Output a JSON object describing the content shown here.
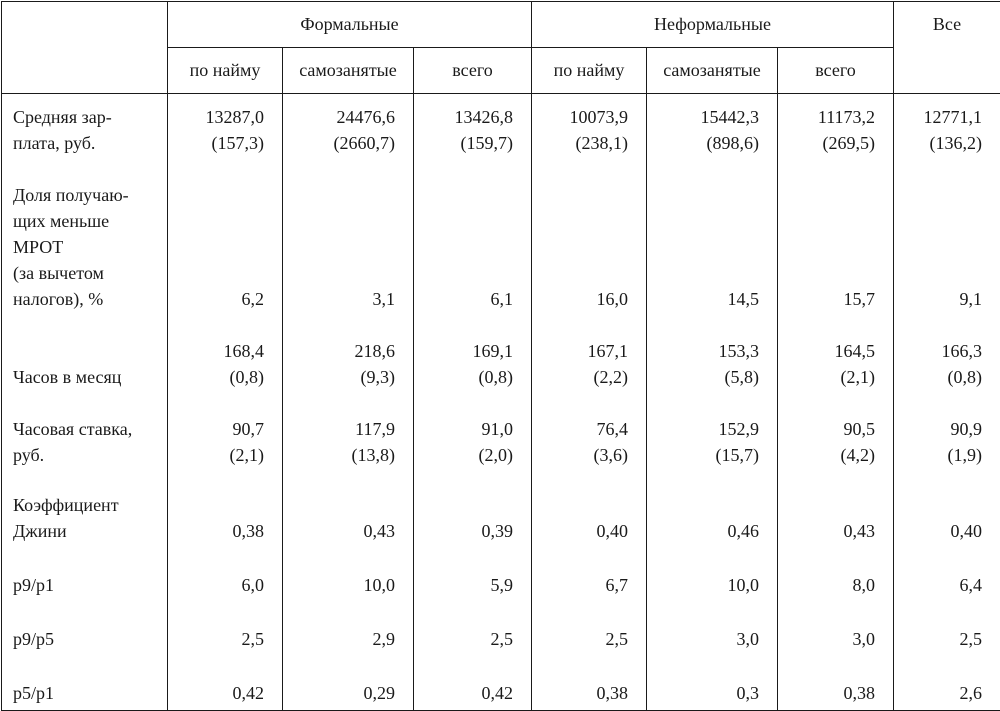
{
  "table": {
    "groups": [
      {
        "label": "Формальные"
      },
      {
        "label": "Неформальные"
      },
      {
        "label": "Все"
      }
    ],
    "subheaders": [
      "по найму",
      "самозанятые",
      "всего",
      "по найму",
      "самозанятые",
      "всего"
    ],
    "rows": [
      {
        "label_lines": [
          "Средняя зар-",
          "плата, руб."
        ],
        "cells": [
          [
            "13287,0",
            "(157,3)"
          ],
          [
            "24476,6",
            "(2660,7)"
          ],
          [
            "13426,8",
            "(159,7)"
          ],
          [
            "10073,9",
            "(238,1)"
          ],
          [
            "15442,3",
            "(898,6)"
          ],
          [
            "11173,2",
            "(269,5)"
          ],
          [
            "12771,1",
            "(136,2)"
          ]
        ]
      },
      {
        "label_lines": [
          "Доля получаю-",
          "щих меньше",
          "МРОТ",
          "(за вычетом",
          "налогов), %"
        ],
        "cells": [
          [
            "6,2"
          ],
          [
            "3,1"
          ],
          [
            "6,1"
          ],
          [
            "16,0"
          ],
          [
            "14,5"
          ],
          [
            "15,7"
          ],
          [
            "9,1"
          ]
        ]
      },
      {
        "label_lines": [
          "Часов в месяц"
        ],
        "cells": [
          [
            "168,4",
            "(0,8)"
          ],
          [
            "218,6",
            "(9,3)"
          ],
          [
            "169,1",
            "(0,8)"
          ],
          [
            "167,1",
            "(2,2)"
          ],
          [
            "153,3",
            "(5,8)"
          ],
          [
            "164,5",
            "(2,1)"
          ],
          [
            "166,3",
            "(0,8)"
          ]
        ]
      },
      {
        "label_lines": [
          "Часовая ставка,",
          "руб."
        ],
        "cells": [
          [
            "90,7",
            "(2,1)"
          ],
          [
            "117,9",
            "(13,8)"
          ],
          [
            "91,0",
            "(2,0)"
          ],
          [
            "76,4",
            "(3,6)"
          ],
          [
            "152,9",
            "(15,7)"
          ],
          [
            "90,5",
            "(4,2)"
          ],
          [
            "90,9",
            "(1,9)"
          ]
        ]
      },
      {
        "label_lines": [
          "Коэффициент",
          "Джини"
        ],
        "cells": [
          [
            "0,38"
          ],
          [
            "0,43"
          ],
          [
            "0,39"
          ],
          [
            "0,40"
          ],
          [
            "0,46"
          ],
          [
            "0,43"
          ],
          [
            "0,40"
          ]
        ]
      },
      {
        "label_lines": [
          "p9/p1"
        ],
        "cells": [
          [
            "6,0"
          ],
          [
            "10,0"
          ],
          [
            "5,9"
          ],
          [
            "6,7"
          ],
          [
            "10,0"
          ],
          [
            "8,0"
          ],
          [
            "6,4"
          ]
        ]
      },
      {
        "label_lines": [
          "p9/p5"
        ],
        "cells": [
          [
            "2,5"
          ],
          [
            "2,9"
          ],
          [
            "2,5"
          ],
          [
            "2,5"
          ],
          [
            "3,0"
          ],
          [
            "3,0"
          ],
          [
            "2,5"
          ]
        ]
      },
      {
        "label_lines": [
          "p5/p1"
        ],
        "cells": [
          [
            "0,42"
          ],
          [
            "0,29"
          ],
          [
            "0,42"
          ],
          [
            "0,38"
          ],
          [
            "0,3"
          ],
          [
            "0,38"
          ],
          [
            "2,6"
          ]
        ]
      }
    ]
  }
}
